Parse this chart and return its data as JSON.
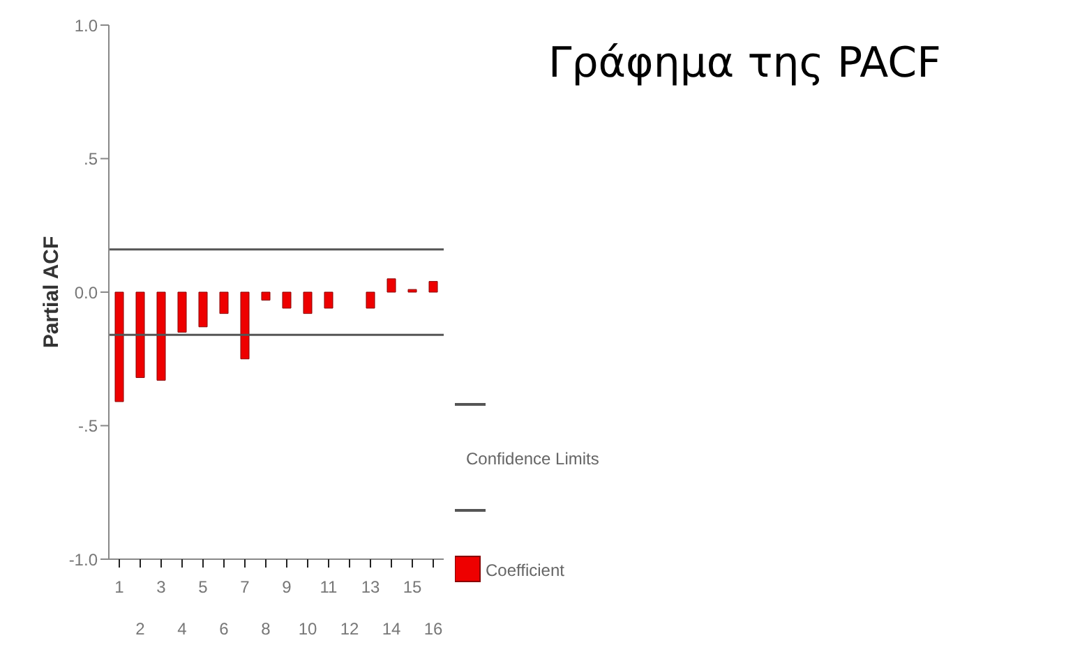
{
  "chart_data": {
    "type": "bar",
    "title": "Γράφημα της PACF",
    "ylabel": "Partial ACF",
    "categories": [
      "1",
      "2",
      "3",
      "4",
      "5",
      "6",
      "7",
      "8",
      "9",
      "10",
      "11",
      "12",
      "13",
      "14",
      "15",
      "16"
    ],
    "series": [
      {
        "name": "Coefficient",
        "color": "#ee0000",
        "values": [
          -0.41,
          -0.32,
          -0.33,
          -0.15,
          -0.13,
          -0.08,
          -0.25,
          -0.03,
          -0.06,
          -0.08,
          -0.06,
          0,
          -0.06,
          0.05,
          0.01,
          0.04
        ]
      }
    ],
    "ylim": [
      -1,
      1
    ],
    "yticks": [
      {
        "value": -1,
        "label": "-1.0"
      },
      {
        "value": -0.5,
        "label": "-.5"
      },
      {
        "value": 0,
        "label": "0.0"
      },
      {
        "value": 0.5,
        "label": ".5"
      },
      {
        "value": 1,
        "label": "1.0"
      }
    ],
    "ref_lines": [
      {
        "axis": "y",
        "value": 0.16,
        "label": "Confidence Limits",
        "color": "#555555"
      },
      {
        "axis": "y",
        "value": -0.16,
        "label": null,
        "color": "#555555"
      }
    ],
    "legend": "right"
  }
}
